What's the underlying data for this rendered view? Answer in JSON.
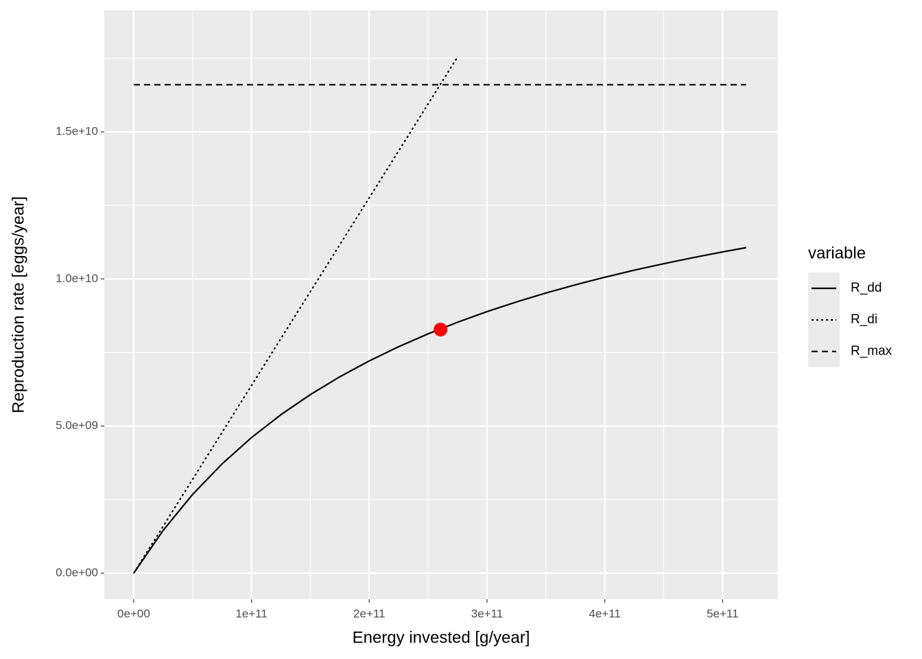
{
  "chart_data": {
    "type": "line",
    "xlabel": "Energy invested [g/year]",
    "ylabel": "Reproduction rate [eggs/year]",
    "legend_title": "variable",
    "x": [
      0,
      25000000000,
      50000000000,
      75000000000,
      100000000000,
      125000000000,
      150000000000,
      175000000000,
      200000000000,
      225000000000,
      250000000000,
      275000000000,
      300000000000,
      325000000000,
      350000000000,
      375000000000,
      400000000000,
      425000000000,
      450000000000,
      475000000000,
      500000000000,
      520000000000
    ],
    "series": [
      {
        "name": "R_dd",
        "color": "#000000",
        "dash": "solid",
        "values": [
          0,
          1455000000,
          2676000000,
          3714000000,
          4609000000,
          5387000000,
          6070000000,
          6675000000,
          7214000000,
          7698000000,
          8134000000,
          8530000000,
          8890000000,
          9219000000,
          9522000000,
          9800000000,
          10058000000,
          10297000000,
          10518000000,
          10725000000,
          10918000000,
          11064000000
        ]
      },
      {
        "name": "R_di",
        "color": "#000000",
        "dash": "dotted",
        "values": [
          0,
          1595000000,
          3190000000,
          4785000000,
          6380000000,
          7975000000,
          9570000000,
          11165000000,
          12760000000,
          14355000000,
          15950000000,
          17545000000,
          null,
          null,
          null,
          null,
          null,
          null,
          null,
          null,
          null,
          null
        ]
      },
      {
        "name": "R_max",
        "color": "#000000",
        "dash": "dashed",
        "values": [
          16600000000,
          16600000000,
          16600000000,
          16600000000,
          16600000000,
          16600000000,
          16600000000,
          16600000000,
          16600000000,
          16600000000,
          16600000000,
          16600000000,
          16600000000,
          16600000000,
          16600000000,
          16600000000,
          16600000000,
          16600000000,
          16600000000,
          16600000000,
          16600000000,
          16600000000
        ]
      }
    ],
    "points": [
      {
        "x": 260500000000,
        "y": 8280000000,
        "color": "#ff0000"
      }
    ],
    "xlim": [
      -25000000000,
      547000000000
    ],
    "ylim": [
      -887000000,
      19130000000
    ],
    "xticks": [
      {
        "value": 0,
        "label": "0e+00"
      },
      {
        "value": 100000000000,
        "label": "1e+11"
      },
      {
        "value": 200000000000,
        "label": "2e+11"
      },
      {
        "value": 300000000000,
        "label": "3e+11"
      },
      {
        "value": 400000000000,
        "label": "4e+11"
      },
      {
        "value": 500000000000,
        "label": "5e+11"
      }
    ],
    "yticks": [
      {
        "value": 0,
        "label": "0.0e+00"
      },
      {
        "value": 5000000000,
        "label": "5.0e+09"
      },
      {
        "value": 10000000000,
        "label": "1.0e+10"
      },
      {
        "value": 15000000000,
        "label": "1.5e+10"
      }
    ],
    "grid": true
  }
}
